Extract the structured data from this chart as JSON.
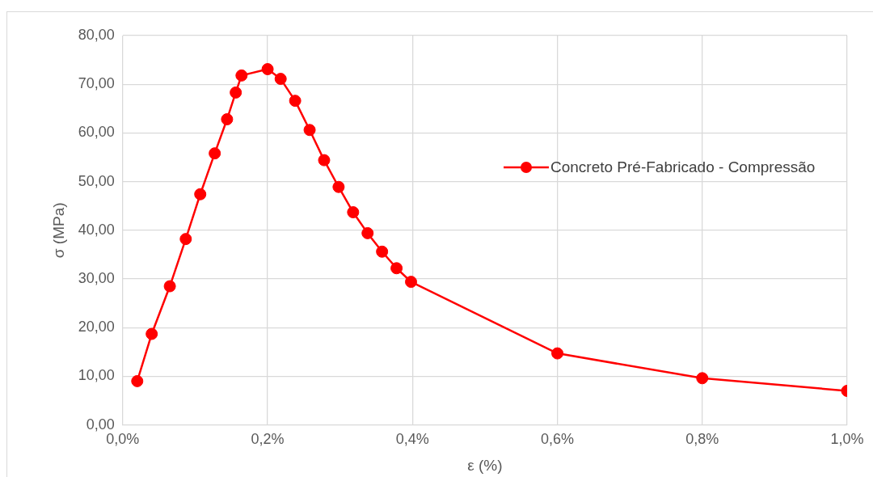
{
  "chart_data": {
    "type": "line",
    "xlabel": "ε (%)",
    "ylabel": "σ (MPa)",
    "x": [
      0.02,
      0.04,
      0.065,
      0.087,
      0.107,
      0.127,
      0.144,
      0.156,
      0.164,
      0.2,
      0.218,
      0.238,
      0.258,
      0.278,
      0.298,
      0.318,
      0.338,
      0.358,
      0.378,
      0.398,
      0.6,
      0.8,
      1.0
    ],
    "series": [
      {
        "name": "Concreto Pré-Fabricado - Compressão",
        "color": "#ff0000",
        "values": [
          9.0,
          18.7,
          28.5,
          38.2,
          47.4,
          55.8,
          62.8,
          68.3,
          71.8,
          73.1,
          71.1,
          66.6,
          60.6,
          54.4,
          48.9,
          43.7,
          39.4,
          35.6,
          32.2,
          29.4,
          14.7,
          9.6,
          7.0
        ]
      }
    ],
    "xlim": [
      0,
      1.0
    ],
    "xticks": [
      {
        "value": 0,
        "label": "0,0%"
      },
      {
        "value": 0.2,
        "label": "0,2%"
      },
      {
        "value": 0.4,
        "label": "0,4%"
      },
      {
        "value": 0.6,
        "label": "0,6%"
      },
      {
        "value": 0.8,
        "label": "0,8%"
      },
      {
        "value": 1.0,
        "label": "1,0%"
      }
    ],
    "ylim": [
      0,
      80
    ],
    "yticks": [
      {
        "value": 0,
        "label": "0,00"
      },
      {
        "value": 10,
        "label": "10,00"
      },
      {
        "value": 20,
        "label": "20,00"
      },
      {
        "value": 30,
        "label": "30,00"
      },
      {
        "value": 40,
        "label": "40,00"
      },
      {
        "value": 50,
        "label": "50,00"
      },
      {
        "value": 60,
        "label": "60,00"
      },
      {
        "value": 70,
        "label": "70,00"
      },
      {
        "value": 80,
        "label": "80,00"
      }
    ],
    "grid": true,
    "legend": "right",
    "marker": "circle",
    "line_style": "solid"
  }
}
